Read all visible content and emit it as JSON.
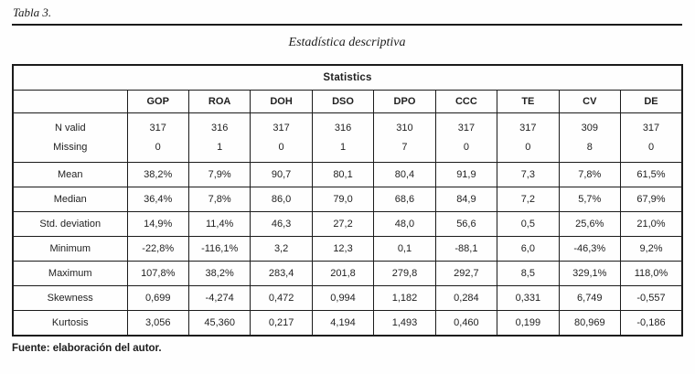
{
  "page": {
    "table_label": "Tabla 3.",
    "title": "Estadística descriptiva",
    "source": "Fuente: elaboración del autor."
  },
  "colors": {
    "text": "#1c1c1c",
    "border": "#1b1b1b",
    "background": "#fefefe"
  },
  "table": {
    "header": "Statistics",
    "corner": "",
    "columns": [
      "GOP",
      "ROA",
      "DOH",
      "DSO",
      "DPO",
      "CCC",
      "TE",
      "CV",
      "DE"
    ],
    "count_row": {
      "label_top": "N valid",
      "label_bottom": "Missing",
      "valid": [
        "317",
        "316",
        "317",
        "316",
        "310",
        "317",
        "317",
        "309",
        "317"
      ],
      "missing": [
        "0",
        "1",
        "0",
        "1",
        "7",
        "0",
        "0",
        "8",
        "0"
      ]
    },
    "rows": [
      {
        "label": "Mean",
        "values": [
          "38,2%",
          "7,9%",
          "90,7",
          "80,1",
          "80,4",
          "91,9",
          "7,3",
          "7,8%",
          "61,5%"
        ]
      },
      {
        "label": "Median",
        "values": [
          "36,4%",
          "7,8%",
          "86,0",
          "79,0",
          "68,6",
          "84,9",
          "7,2",
          "5,7%",
          "67,9%"
        ]
      },
      {
        "label": "Std. deviation",
        "values": [
          "14,9%",
          "11,4%",
          "46,3",
          "27,2",
          "48,0",
          "56,6",
          "0,5",
          "25,6%",
          "21,0%"
        ]
      },
      {
        "label": "Minimum",
        "values": [
          "-22,8%",
          "-116,1%",
          "3,2",
          "12,3",
          "0,1",
          "-88,1",
          "6,0",
          "-46,3%",
          "9,2%"
        ]
      },
      {
        "label": "Maximum",
        "values": [
          "107,8%",
          "38,2%",
          "283,4",
          "201,8",
          "279,8",
          "292,7",
          "8,5",
          "329,1%",
          "118,0%"
        ]
      },
      {
        "label": "Skewness",
        "values": [
          "0,699",
          "-4,274",
          "0,472",
          "0,994",
          "1,182",
          "0,284",
          "0,331",
          "6,749",
          "-0,557"
        ]
      },
      {
        "label": "Kurtosis",
        "values": [
          "3,056",
          "45,360",
          "0,217",
          "4,194",
          "1,493",
          "0,460",
          "0,199",
          "80,969",
          "-0,186"
        ]
      }
    ]
  }
}
